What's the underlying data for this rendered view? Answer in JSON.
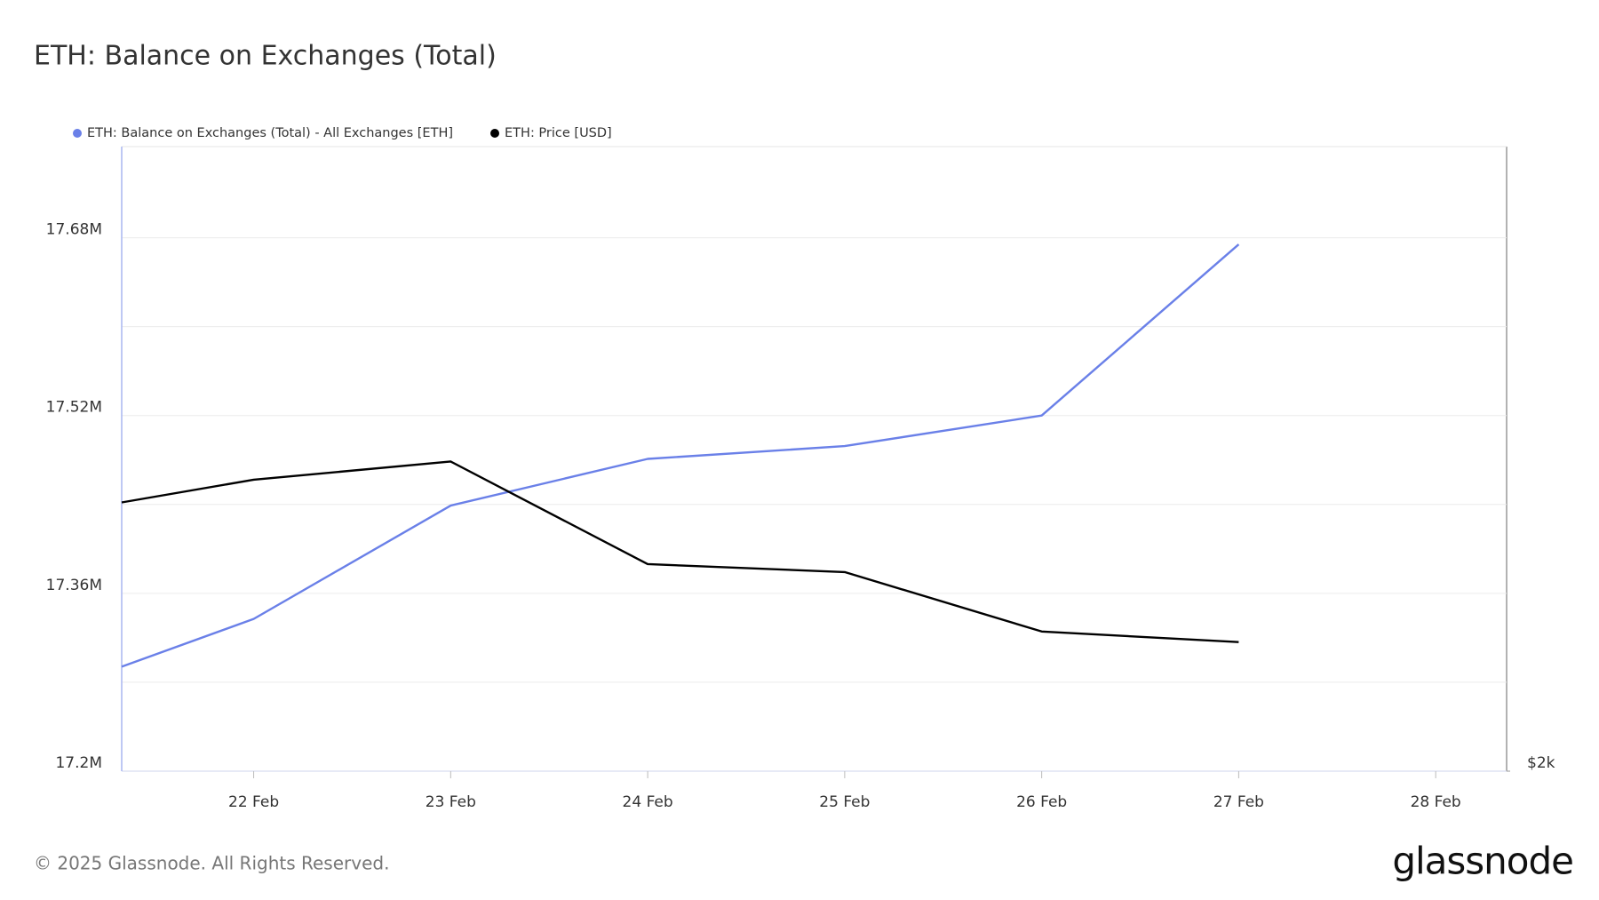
{
  "chart_data": {
    "type": "line",
    "title": "ETH: Balance on Exchanges (Total)",
    "x": [
      21.33,
      22,
      23,
      24,
      25,
      26,
      27
    ],
    "xlim": [
      21.33,
      28.36
    ],
    "xticks": [
      {
        "value": 22,
        "label": "22 Feb"
      },
      {
        "value": 23,
        "label": "23 Feb"
      },
      {
        "value": 24,
        "label": "24 Feb"
      },
      {
        "value": 25,
        "label": "25 Feb"
      },
      {
        "value": 26,
        "label": "26 Feb"
      },
      {
        "value": 27,
        "label": "27 Feb"
      },
      {
        "value": 28,
        "label": "28 Feb"
      }
    ],
    "ylim": [
      17200000,
      17762000
    ],
    "yticks": [
      {
        "value": 17200000,
        "label": "17.2M"
      },
      {
        "value": 17360000,
        "label": "17.36M"
      },
      {
        "value": 17520000,
        "label": "17.52M"
      },
      {
        "value": 17680000,
        "label": "17.68M"
      }
    ],
    "minor_yticks": [
      17280000,
      17440000,
      17600000
    ],
    "y2lim": [
      2000,
      3650
    ],
    "y2ticks": [
      {
        "value": 2000,
        "label": "$2k"
      }
    ],
    "grid": true,
    "series": [
      {
        "name": "ETH: Balance on Exchanges (Total) - All Exchanges [ETH]",
        "color": "#6a80e8",
        "values": [
          17294000,
          17337000,
          17439000,
          17481000,
          17492500,
          17520000,
          17674000
        ]
      },
      {
        "name": "ETH: Price [USD]",
        "color": "#000000",
        "axis": "y2",
        "values": [
          2710,
          2770,
          2818,
          2547,
          2526,
          2369,
          2341
        ]
      }
    ]
  },
  "footer": {
    "copyright": "© 2025 Glassnode. All Rights Reserved.",
    "brand": "glassnode"
  }
}
